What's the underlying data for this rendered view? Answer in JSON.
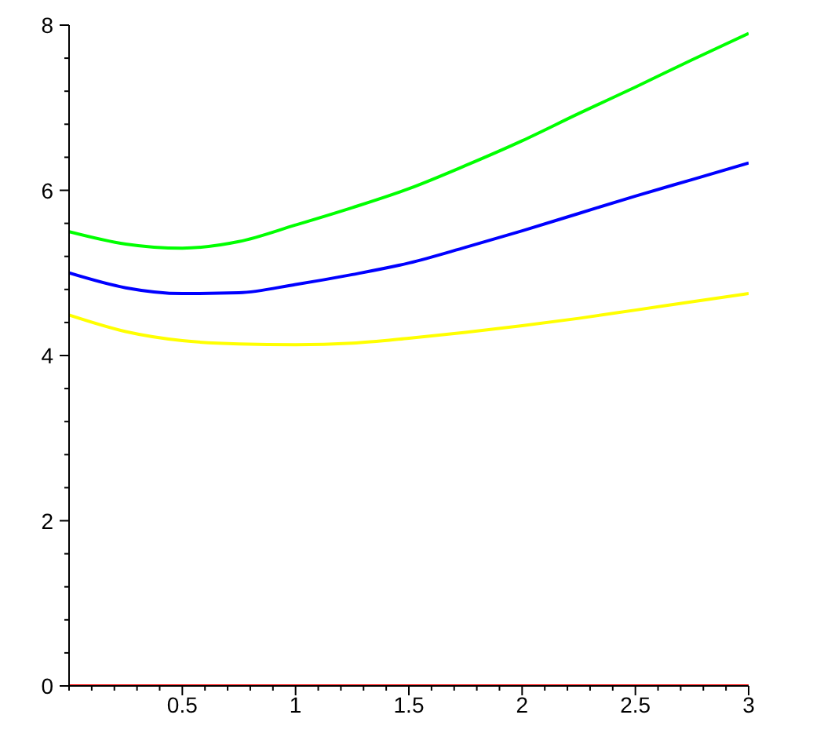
{
  "chart_data": {
    "type": "line",
    "x": [
      0,
      0.25,
      0.5,
      0.75,
      1,
      1.25,
      1.5,
      1.75,
      2,
      2.25,
      2.5,
      2.75,
      3
    ],
    "series": [
      {
        "color": "#00ff00",
        "values": [
          5.5,
          5.35,
          5.3,
          5.38,
          5.58,
          5.79,
          6.02,
          6.3,
          6.6,
          6.93,
          7.25,
          7.58,
          7.9
        ]
      },
      {
        "color": "#0000ff",
        "values": [
          5.0,
          4.82,
          4.75,
          4.76,
          4.86,
          4.98,
          5.12,
          5.31,
          5.51,
          5.72,
          5.93,
          6.13,
          6.33
        ]
      },
      {
        "color": "#ffff00",
        "values": [
          4.49,
          4.29,
          4.18,
          4.14,
          4.13,
          4.15,
          4.21,
          4.28,
          4.36,
          4.45,
          4.55,
          4.65,
          4.75
        ]
      },
      {
        "color": "#ff0000",
        "values": [
          0,
          0,
          0,
          0,
          0,
          0,
          0,
          0,
          0,
          0,
          0,
          0,
          0
        ]
      }
    ],
    "xlim": [
      0,
      3
    ],
    "xticks": [
      {
        "value": 0,
        "label": null
      },
      {
        "value": 0.1,
        "label": null
      },
      {
        "value": 0.2,
        "label": null
      },
      {
        "value": 0.3,
        "label": null
      },
      {
        "value": 0.4,
        "label": null
      },
      0.5,
      {
        "value": 0.6,
        "label": null
      },
      {
        "value": 0.7,
        "label": null
      },
      {
        "value": 0.8,
        "label": null
      },
      {
        "value": 0.9,
        "label": null
      },
      1,
      {
        "value": 1.1,
        "label": null
      },
      {
        "value": 1.2,
        "label": null
      },
      {
        "value": 1.3,
        "label": null
      },
      {
        "value": 1.4,
        "label": null
      },
      1.5,
      {
        "value": 1.6,
        "label": null
      },
      {
        "value": 1.7,
        "label": null
      },
      {
        "value": 1.8,
        "label": null
      },
      {
        "value": 1.9,
        "label": null
      },
      2,
      {
        "value": 2.1,
        "label": null
      },
      {
        "value": 2.2,
        "label": null
      },
      {
        "value": 2.3,
        "label": null
      },
      {
        "value": 2.4,
        "label": null
      },
      2.5,
      {
        "value": 2.6,
        "label": null
      },
      {
        "value": 2.7,
        "label": null
      },
      {
        "value": 2.8,
        "label": null
      },
      {
        "value": 2.9,
        "label": null
      },
      3
    ],
    "ylim": [
      0,
      8
    ],
    "yticks": [
      0,
      {
        "value": 0.4,
        "label": null
      },
      {
        "value": 0.8,
        "label": null
      },
      {
        "value": 1.2,
        "label": null
      },
      {
        "value": 1.6,
        "label": null
      },
      2,
      {
        "value": 2.4,
        "label": null
      },
      {
        "value": 2.8,
        "label": null
      },
      {
        "value": 3.2,
        "label": null
      },
      {
        "value": 3.6,
        "label": null
      },
      4,
      {
        "value": 4.4,
        "label": null
      },
      {
        "value": 4.8,
        "label": null
      },
      {
        "value": 5.2,
        "label": null
      },
      {
        "value": 5.6,
        "label": null
      },
      6,
      {
        "value": 6.4,
        "label": null
      },
      {
        "value": 6.8,
        "label": null
      },
      {
        "value": 7.2,
        "label": null
      },
      {
        "value": 7.6,
        "label": null
      },
      8
    ],
    "marker": "none",
    "line_style": "solid"
  }
}
